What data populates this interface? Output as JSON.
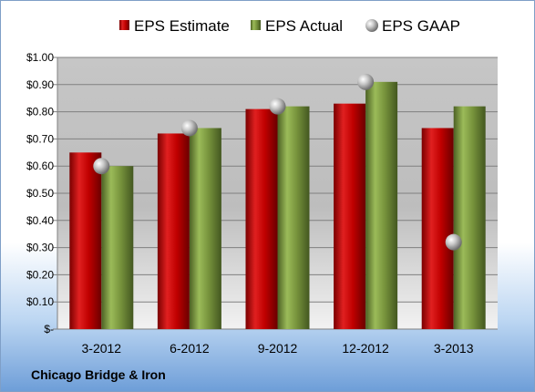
{
  "company": "Chicago Bridge & Iron",
  "chart_data": {
    "type": "bar",
    "categories": [
      "3-2012",
      "6-2012",
      "9-2012",
      "12-2012",
      "3-2013"
    ],
    "series": [
      {
        "name": "EPS Estimate",
        "kind": "bar",
        "color": "#c00000",
        "values": [
          0.65,
          0.72,
          0.81,
          0.83,
          0.74
        ]
      },
      {
        "name": "EPS Actual",
        "kind": "bar",
        "color": "#77933c",
        "values": [
          0.6,
          0.74,
          0.82,
          0.91,
          0.82
        ]
      },
      {
        "name": "EPS GAAP",
        "kind": "marker",
        "color": "#a6a6a6",
        "values": [
          0.6,
          0.74,
          0.82,
          0.91,
          0.32
        ]
      }
    ],
    "ylim": [
      0,
      1.0
    ],
    "yticks": [
      0,
      0.1,
      0.2,
      0.3,
      0.4,
      0.5,
      0.6,
      0.7,
      0.8,
      0.9,
      1.0
    ],
    "ytick_labels": [
      "$-",
      "$0.10",
      "$0.20",
      "$0.30",
      "$0.40",
      "$0.50",
      "$0.60",
      "$0.70",
      "$0.80",
      "$0.90",
      "$1.00"
    ],
    "grid": true,
    "legend": "top"
  }
}
